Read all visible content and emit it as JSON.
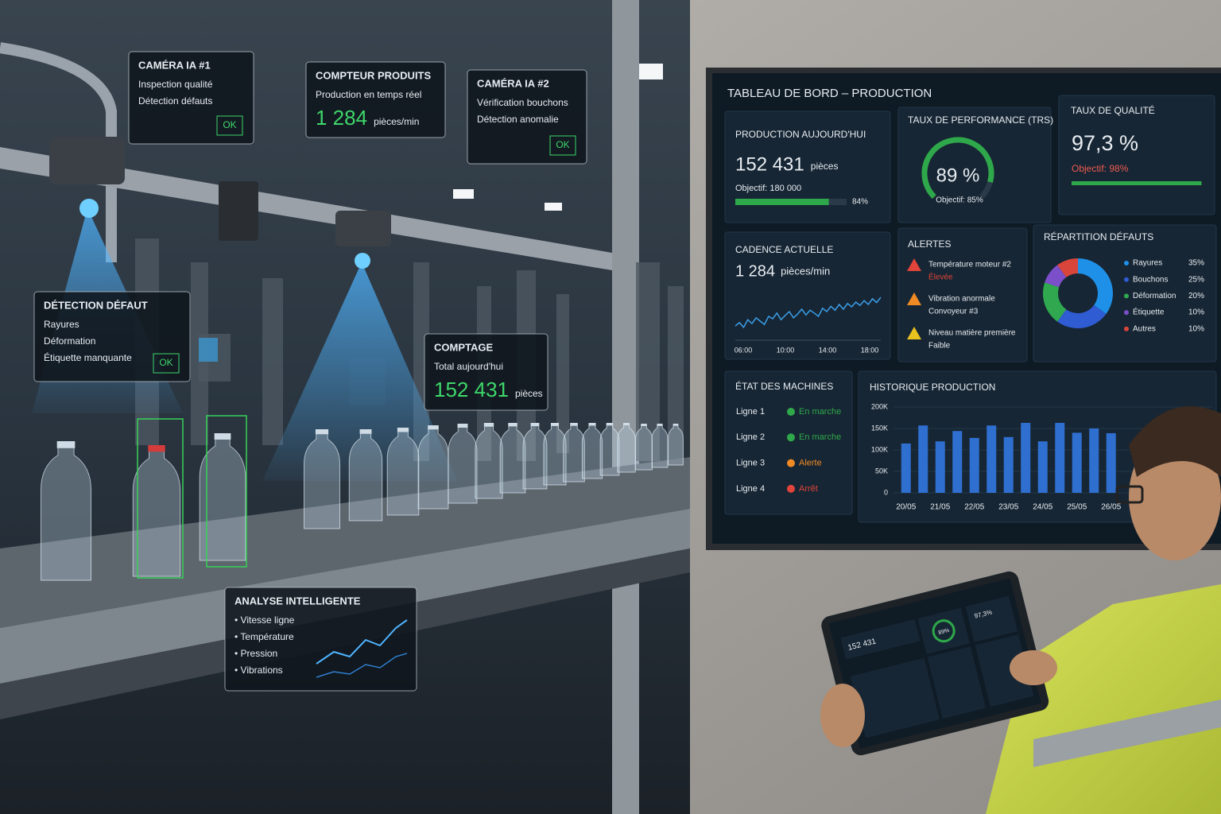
{
  "scene": {
    "camera1": {
      "title": "CAMÉRA IA #1",
      "lines": [
        "Inspection qualité",
        "Détection défauts"
      ],
      "status": "OK"
    },
    "counter": {
      "title": "COMPTEUR PRODUITS",
      "subtitle": "Production en temps réel",
      "value": "1 284",
      "unit": "pièces/min"
    },
    "camera2": {
      "title": "CAMÉRA IA #2",
      "lines": [
        "Vérification bouchons",
        "Détection anomalie"
      ],
      "status": "OK"
    },
    "defect": {
      "title": "DÉTECTION DÉFAUT",
      "lines": [
        "Rayures",
        "Déformation",
        "Étiquette manquante"
      ],
      "status": "OK"
    },
    "count": {
      "title": "COMPTAGE",
      "subtitle": "Total aujourd'hui",
      "value": "152 431",
      "unit": "pièces"
    },
    "analysis": {
      "title": "ANALYSE INTELLIGENTE",
      "lines": [
        "• Vitesse ligne",
        "• Température",
        "• Pression",
        "• Vibrations"
      ]
    }
  },
  "dashboard": {
    "title": "TABLEAU DE BORD – PRODUCTION",
    "production": {
      "title": "PRODUCTION AUJOURD'HUI",
      "value": "152 431",
      "unit": "pièces",
      "target": "Objectif: 180 000",
      "progress": {
        "value": 84,
        "label": "84%"
      },
      "color": "#2ea84a"
    },
    "performance": {
      "title": "TAUX DE PERFORMANCE (TRS)",
      "value": {
        "value": 89,
        "label": "89 %"
      },
      "target": "Objectif: 85%",
      "color": "#2ea84a"
    },
    "quality": {
      "title": "TAUX DE QUALITÉ",
      "value": {
        "value": 97.3,
        "label": "97,3 %"
      },
      "target": "Objectif: 98%",
      "color": "#2ea84a"
    },
    "cadence": {
      "title": "CADENCE ACTUELLE",
      "value": "1 284",
      "unit": "pièces/min",
      "chart": {
        "type": "line",
        "xticks": [
          "06:00",
          "10:00",
          "14:00",
          "18:00"
        ],
        "ylim": [
          0,
          100
        ],
        "color": "#3a9ee8",
        "values": [
          25,
          32,
          22,
          38,
          30,
          42,
          35,
          28,
          45,
          40,
          52,
          38,
          47,
          55,
          42,
          50,
          60,
          48,
          58,
          52,
          45,
          62,
          55,
          66,
          58,
          70,
          60,
          72,
          65,
          75,
          68,
          78,
          70,
          82,
          74,
          85
        ]
      }
    },
    "alerts": {
      "title": "ALERTES",
      "items": [
        {
          "lines": [
            "Température moteur #2",
            "Élevée"
          ],
          "color": "#e0443a"
        },
        {
          "lines": [
            "Vibration anormale",
            "Convoyeur #3"
          ],
          "color": "#f08a24"
        },
        {
          "lines": [
            "Niveau matière première",
            "Faible"
          ],
          "color": "#e8c21e"
        }
      ]
    },
    "defects": {
      "title": "RÉPARTITION DÉFAUTS",
      "chart": {
        "type": "pie",
        "categories": [
          "Rayures",
          "Bouchons",
          "Déformation",
          "Étiquette",
          "Autres"
        ],
        "values": [
          35,
          25,
          20,
          10,
          10
        ],
        "value_labels": [
          "35%",
          "25%",
          "20%",
          "10%",
          "10%"
        ],
        "colors": [
          "#1e90e8",
          "#2f5bd3",
          "#2fa84f",
          "#7b4fc9",
          "#d9453a"
        ]
      }
    },
    "machines": {
      "title": "ÉTAT DES MACHINES",
      "rows": [
        {
          "name": "Ligne 1",
          "status": "En marche",
          "color": "#2ea84a"
        },
        {
          "name": "Ligne 2",
          "status": "En marche",
          "color": "#2ea84a"
        },
        {
          "name": "Ligne 3",
          "status": "Alerte",
          "color": "#f08a24"
        },
        {
          "name": "Ligne 4",
          "status": "Arrêt",
          "color": "#e0443a"
        }
      ]
    },
    "history": {
      "title": "HISTORIQUE PRODUCTION",
      "chart": {
        "type": "bar",
        "color": "#2f6fd0",
        "categories": [
          "20/05",
          null,
          "21/05",
          null,
          "22/05",
          null,
          "23/05",
          null,
          "24/05",
          null,
          "25/05",
          null,
          "26/05"
        ],
        "values": [
          115000,
          157000,
          120000,
          144000,
          128000,
          157000,
          130000,
          163000,
          120000,
          163000,
          140000,
          150000,
          139000
        ],
        "ylim": [
          0,
          200000
        ],
        "yticks": [
          0,
          {
            "value": 50000,
            "label": "50K"
          },
          {
            "value": 100000,
            "label": "100K"
          },
          {
            "value": 150000,
            "label": "150K"
          },
          {
            "value": 200000,
            "label": "200K"
          }
        ]
      }
    }
  },
  "tablet": {
    "texts": [
      "152 431",
      "89%",
      "97,3%"
    ]
  }
}
